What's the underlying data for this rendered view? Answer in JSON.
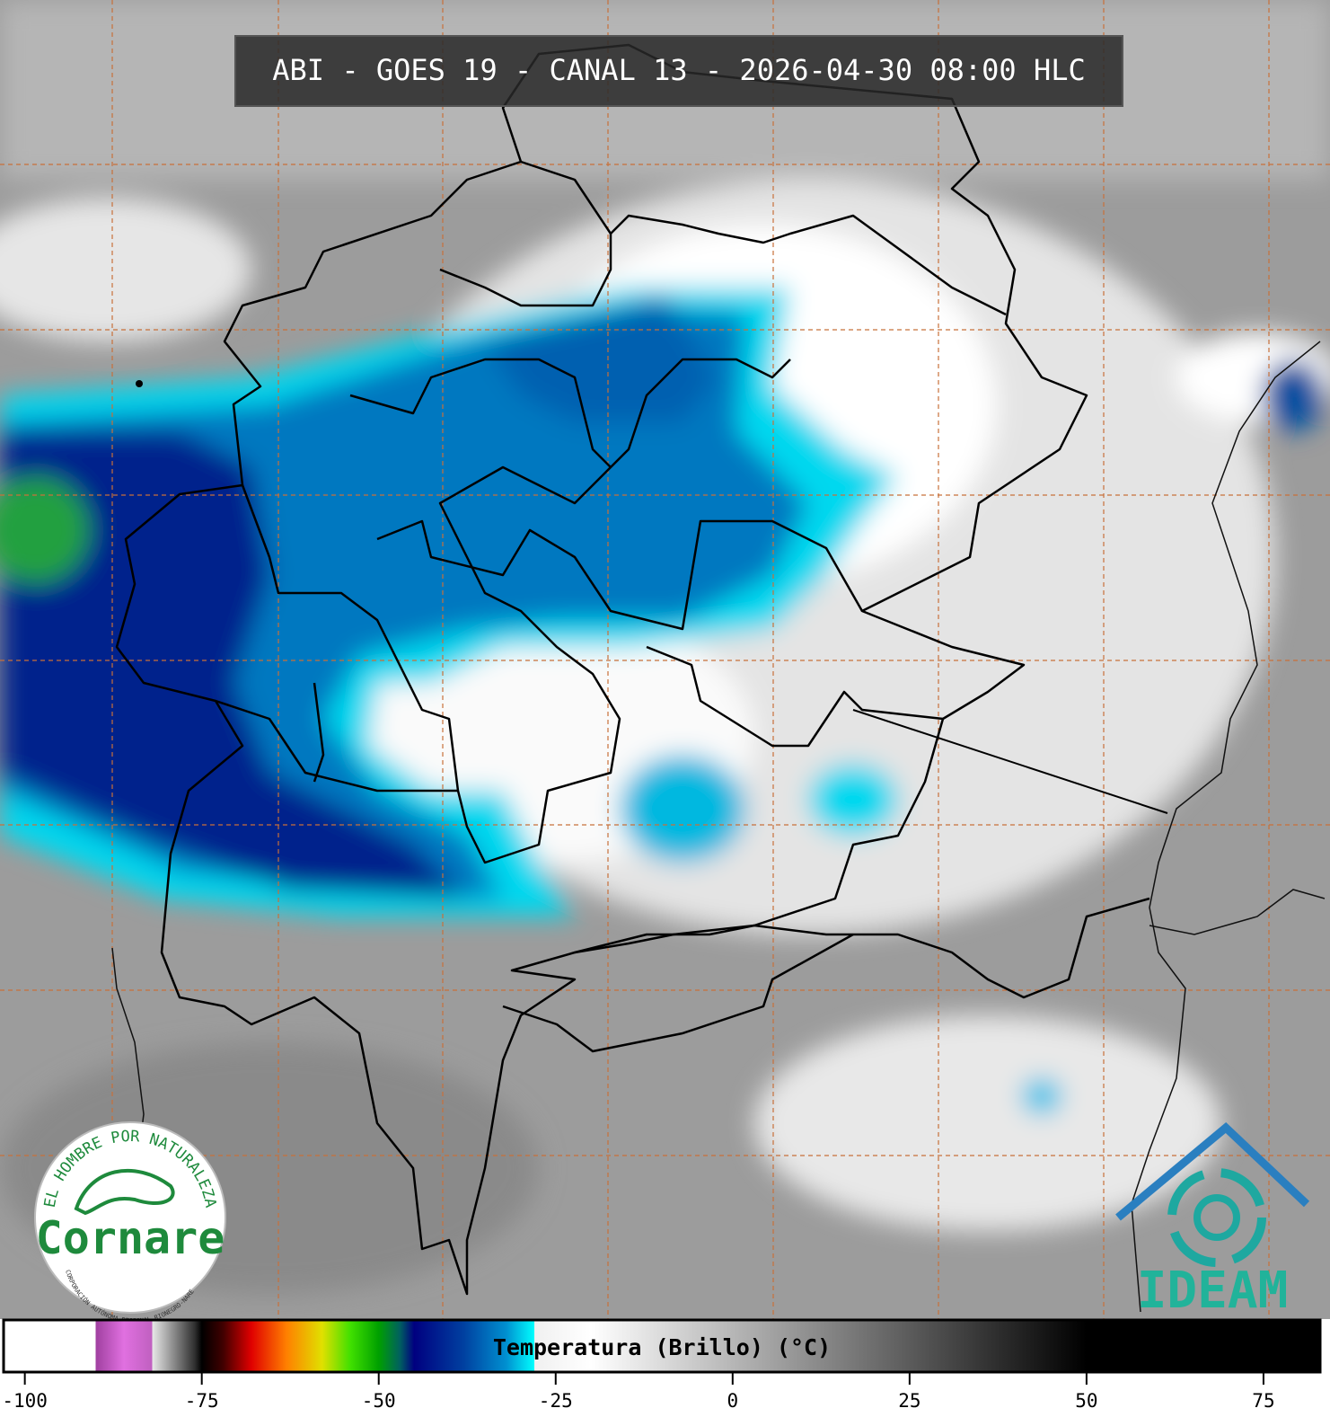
{
  "title": "ABI - GOES 19 - CANAL 13 - 2026-04-30 08:00 HLC",
  "logos": {
    "cornare": {
      "motto": "EL HOMBRE POR NATURALEZA",
      "name": "Cornare",
      "subtitle": "CORPORACIÓN AUTÓNOMA REGIONAL RIONEGRO-NARE"
    },
    "ideam": {
      "name": "IDEAM"
    }
  },
  "colorbar": {
    "label": "Temperatura (Brillo) (°C)",
    "xlim": [
      -103,
      83
    ],
    "ticks": [
      -100,
      -75,
      -50,
      -25,
      0,
      25,
      50,
      75
    ],
    "colorscale": [
      [
        -103,
        "#ffffff"
      ],
      [
        -90,
        "#ffffff"
      ],
      [
        -90,
        "#a040a0"
      ],
      [
        -86,
        "#e070e0"
      ],
      [
        -82,
        "#c060c0"
      ],
      [
        -82,
        "#e8e8e8"
      ],
      [
        -76,
        "#303030"
      ],
      [
        -75,
        "#000000"
      ],
      [
        -72,
        "#400000"
      ],
      [
        -68,
        "#e00000"
      ],
      [
        -63,
        "#ff8000"
      ],
      [
        -58,
        "#e0e000"
      ],
      [
        -54,
        "#40e000"
      ],
      [
        -50,
        "#00a000"
      ],
      [
        -47,
        "#006060"
      ],
      [
        -45,
        "#000080"
      ],
      [
        -38,
        "#0040a0"
      ],
      [
        -32,
        "#0090d0"
      ],
      [
        -28,
        "#00ffff"
      ],
      [
        -28,
        "#f0f0f0"
      ],
      [
        -20,
        "#ffffff"
      ],
      [
        50,
        "#000000"
      ],
      [
        83,
        "#000000"
      ]
    ]
  }
}
